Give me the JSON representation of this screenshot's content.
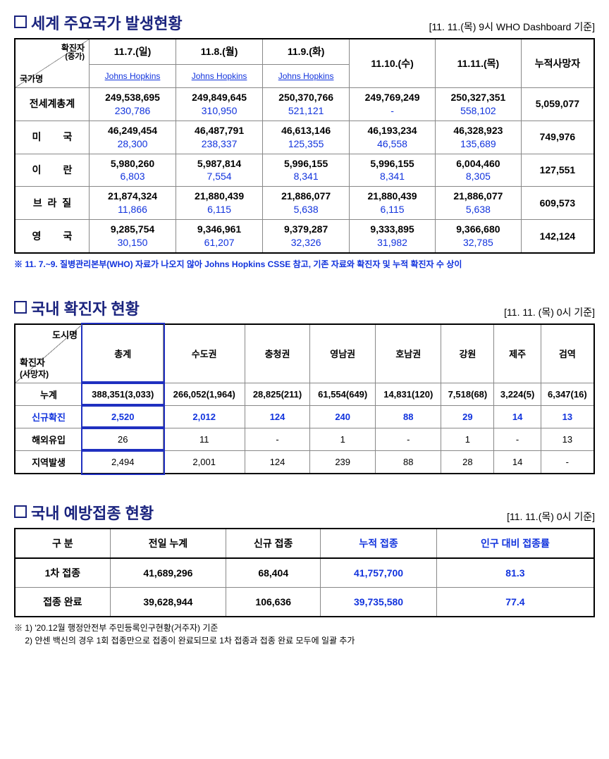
{
  "world": {
    "title": "세계 주요국가 발생현황",
    "timestamp": "[11. 11.(목) 9시 WHO Dashboard 기준]",
    "header": {
      "diag_top": "확진자",
      "diag_mid": "(증가)",
      "diag_bottom": "국가명",
      "cols": [
        {
          "date": "11.7.(일)",
          "source": "Johns Hopkins"
        },
        {
          "date": "11.8.(월)",
          "source": "Johns Hopkins"
        },
        {
          "date": "11.9.(화)",
          "source": "Johns Hopkins"
        },
        {
          "date": "11.10.(수)"
        },
        {
          "date": "11.11.(목)"
        }
      ],
      "deaths": "누적사망자"
    },
    "rows": [
      {
        "name": "전세계총계",
        "cells": [
          {
            "a": "249,538,695",
            "b": "230,786"
          },
          {
            "a": "249,849,645",
            "b": "310,950"
          },
          {
            "a": "250,370,766",
            "b": "521,121"
          },
          {
            "a": "249,769,249",
            "b": "-"
          },
          {
            "a": "250,327,351",
            "b": "558,102"
          }
        ],
        "deaths": "5,059,077"
      },
      {
        "name": "미        국",
        "cells": [
          {
            "a": "46,249,454",
            "b": "28,300"
          },
          {
            "a": "46,487,791",
            "b": "238,337"
          },
          {
            "a": "46,613,146",
            "b": "125,355"
          },
          {
            "a": "46,193,234",
            "b": "46,558"
          },
          {
            "a": "46,328,923",
            "b": "135,689"
          }
        ],
        "deaths": "749,976"
      },
      {
        "name": "이        란",
        "cells": [
          {
            "a": "5,980,260",
            "b": "6,803"
          },
          {
            "a": "5,987,814",
            "b": "7,554"
          },
          {
            "a": "5,996,155",
            "b": "8,341"
          },
          {
            "a": "5,996,155",
            "b": "8,341"
          },
          {
            "a": "6,004,460",
            "b": "8,305"
          }
        ],
        "deaths": "127,551"
      },
      {
        "name": "브  라  질",
        "cells": [
          {
            "a": "21,874,324",
            "b": "11,866"
          },
          {
            "a": "21,880,439",
            "b": "6,115"
          },
          {
            "a": "21,886,077",
            "b": "5,638"
          },
          {
            "a": "21,880,439",
            "b": "6,115"
          },
          {
            "a": "21,886,077",
            "b": "5,638"
          }
        ],
        "deaths": "609,573"
      },
      {
        "name": "영        국",
        "cells": [
          {
            "a": "9,285,754",
            "b": "30,150"
          },
          {
            "a": "9,346,961",
            "b": "61,207"
          },
          {
            "a": "9,379,287",
            "b": "32,326"
          },
          {
            "a": "9,333,895",
            "b": "31,982"
          },
          {
            "a": "9,366,680",
            "b": "32,785"
          }
        ],
        "deaths": "142,124"
      }
    ],
    "note": "※ 11. 7.~9. 질병관리본부(WHO) 자료가 나오지 않아 Johns Hopkins CSSE 참고, 기존 자료와 확진자 및 누적 확진자 수 상이"
  },
  "domestic": {
    "title": "국내 확진자 현황",
    "timestamp": "[11. 11. (목) 0시 기준]",
    "diag_top": "도시명",
    "diag_mid": "확진자",
    "diag_bottom": "(사망자)",
    "cols": [
      "총계",
      "수도권",
      "충청권",
      "영남권",
      "호남권",
      "강원",
      "제주",
      "검역"
    ],
    "rows": [
      {
        "label": "누계",
        "vals": [
          "388,351(3,033)",
          "266,052(1,964)",
          "28,825(211)",
          "61,554(649)",
          "14,831(120)",
          "7,518(68)",
          "3,224(5)",
          "6,347(16)"
        ],
        "style": "bold"
      },
      {
        "label": "신규확진",
        "vals": [
          "2,520",
          "2,012",
          "124",
          "240",
          "88",
          "29",
          "14",
          "13"
        ],
        "style": "blue"
      },
      {
        "label": "해외유입",
        "vals": [
          "26",
          "11",
          "-",
          "1",
          "-",
          "1",
          "-",
          "13"
        ],
        "style": "normal"
      },
      {
        "label": "지역발생",
        "vals": [
          "2,494",
          "2,001",
          "124",
          "239",
          "88",
          "28",
          "14",
          "-"
        ],
        "style": "normal"
      }
    ]
  },
  "vaccination": {
    "title": "국내 예방접종 현황",
    "timestamp": "[11. 11.(목) 0시 기준]",
    "cols": [
      "구 분",
      "전일 누계",
      "신규 접종",
      "누적 접종",
      "인구 대비 접종률"
    ],
    "rows": [
      {
        "label": "1차 접종",
        "prev": "41,689,296",
        "new": "68,404",
        "cum": "41,757,700",
        "rate": "81.3"
      },
      {
        "label": "접종 완료",
        "prev": "39,628,944",
        "new": "106,636",
        "cum": "39,735,580",
        "rate": "77.4"
      }
    ],
    "note1": "※ 1) '20.12월 행정안전부 주민등록인구현황(거주자) 기준",
    "note2": "　  2) 얀센 백신의 경우 1회 접종만으로 접종이 완료되므로 1차 접종과 접종 완료 모두에 일괄 추가"
  }
}
